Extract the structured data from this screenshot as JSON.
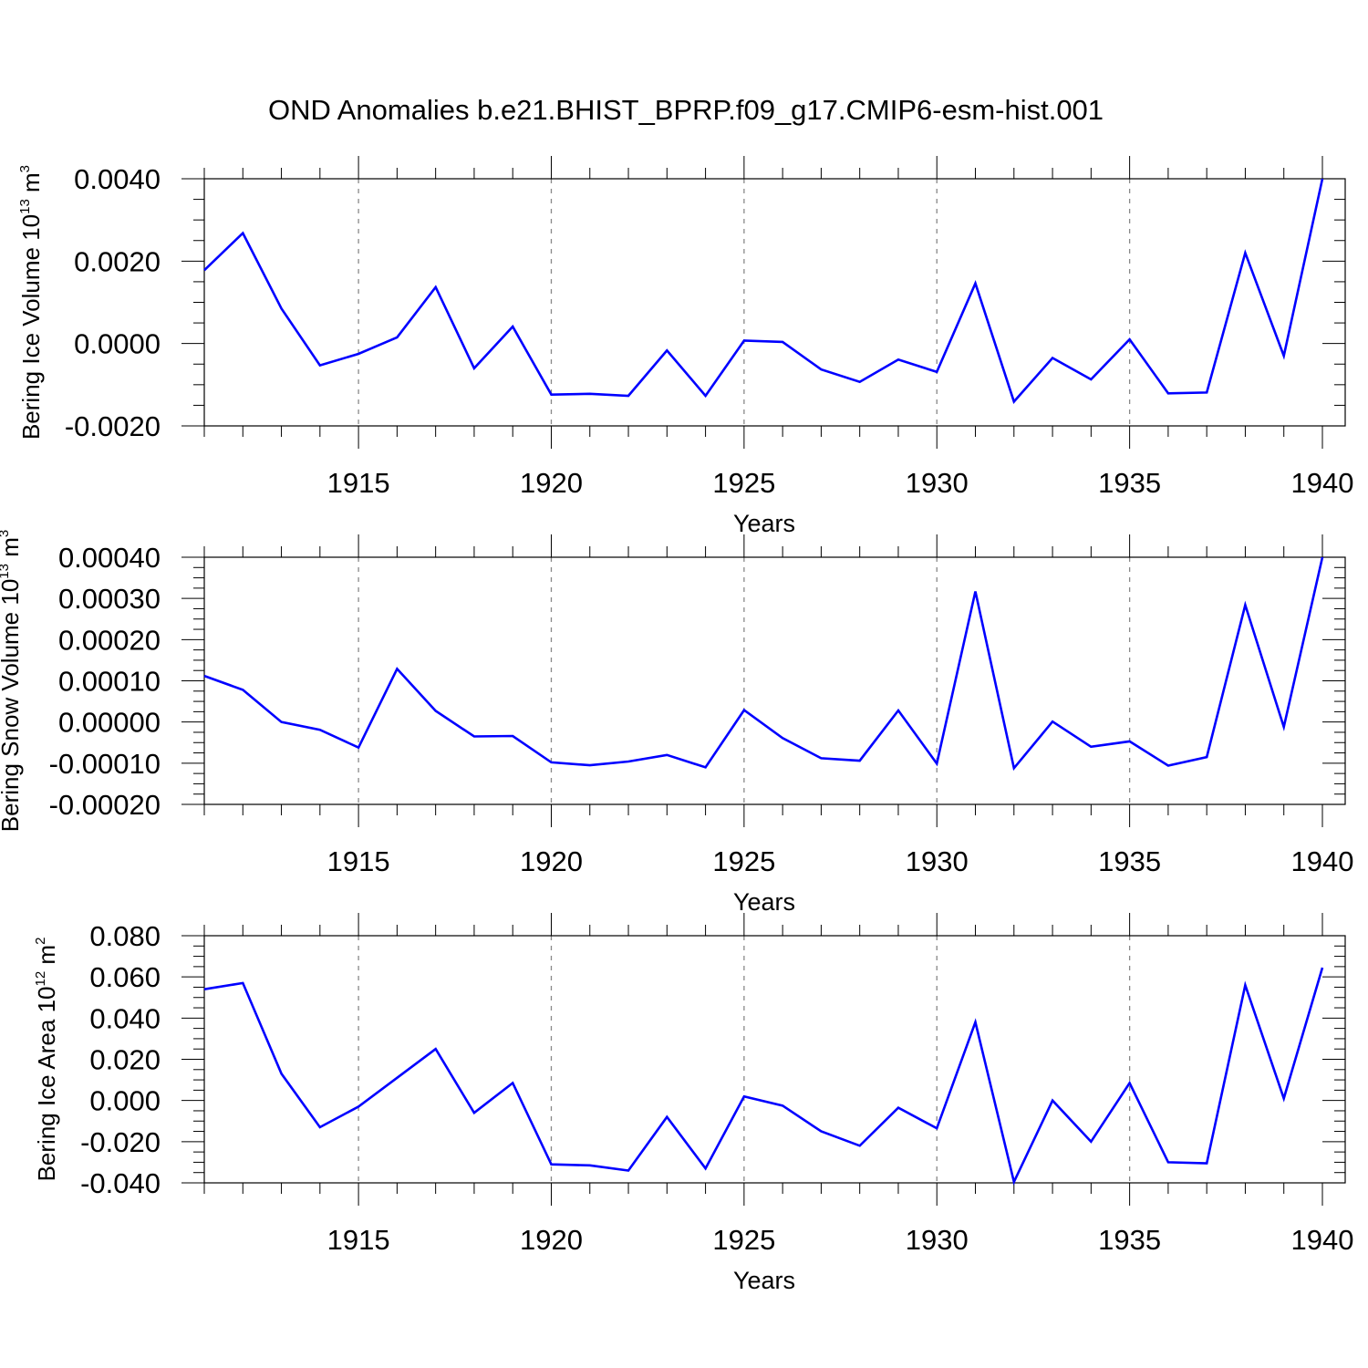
{
  "title": "OND Anomalies b.e21.BHIST_BPRP.f09_g17.CMIP6-esm-hist.001",
  "colors": {
    "line": "#0000ff",
    "grid": "#888888",
    "axis": "#000000"
  },
  "chart_data": [
    {
      "type": "line",
      "title": "OND Anomalies b.e21.BHIST_BPRP.f09_g17.CMIP6-esm-hist.001",
      "xlabel": "Years",
      "ylabel": {
        "text": "Bering Ice Volume 10",
        "sup": "13",
        "unit": " m",
        "unit_sup": "3"
      },
      "xlim": [
        1911,
        1940
      ],
      "ylim": [
        -0.002,
        0.004
      ],
      "xticks": [
        1915,
        1920,
        1925,
        1930,
        1935,
        1940
      ],
      "xtick_labels": [
        "1915",
        "1920",
        "1925",
        "1930",
        "1935",
        "1940"
      ],
      "yticks": [
        -0.002,
        0.0,
        0.002,
        0.004
      ],
      "ytick_labels": [
        "-0.0020",
        "0.0000",
        "0.0020",
        "0.0040"
      ],
      "grid": "vertical dashed at major x ticks",
      "x": [
        1911,
        1912,
        1913,
        1914,
        1915,
        1916,
        1917,
        1918,
        1919,
        1920,
        1921,
        1922,
        1923,
        1924,
        1925,
        1926,
        1927,
        1928,
        1929,
        1930,
        1931,
        1932,
        1933,
        1934,
        1935,
        1936,
        1937,
        1938,
        1939,
        1940
      ],
      "series": [
        {
          "name": "Bering Ice Volume",
          "values": [
            0.00178,
            0.00268,
            0.00085,
            -0.00053,
            -0.00025,
            0.00015,
            0.00137,
            -0.0006,
            0.00041,
            -0.00124,
            -0.00122,
            -0.00127,
            -0.00017,
            -0.00127,
            7e-05,
            4e-05,
            -0.00063,
            -0.00093,
            -0.00039,
            -0.00069,
            0.00146,
            -0.00141,
            -0.00035,
            -0.00087,
            0.0001,
            -0.00121,
            -0.00119,
            0.0022,
            -0.0003,
            0.004
          ]
        }
      ]
    },
    {
      "type": "line",
      "xlabel": "Years",
      "ylabel": {
        "text": "Bering Snow Volume 10",
        "sup": "13",
        "unit": " m",
        "unit_sup": "3"
      },
      "xlim": [
        1911,
        1940
      ],
      "ylim": [
        -0.0002,
        0.0004
      ],
      "xticks": [
        1915,
        1920,
        1925,
        1930,
        1935,
        1940
      ],
      "xtick_labels": [
        "1915",
        "1920",
        "1925",
        "1930",
        "1935",
        "1940"
      ],
      "yticks": [
        -0.0002,
        -0.0001,
        0.0,
        0.0001,
        0.0002,
        0.0003,
        0.0004
      ],
      "ytick_labels": [
        "-0.00020",
        "-0.00010",
        "0.00000",
        "0.00010",
        "0.00020",
        "0.00030",
        "0.00040"
      ],
      "grid": "vertical dashed at major x ticks",
      "x": [
        1911,
        1912,
        1913,
        1914,
        1915,
        1916,
        1917,
        1918,
        1919,
        1920,
        1921,
        1922,
        1923,
        1924,
        1925,
        1926,
        1927,
        1928,
        1929,
        1930,
        1931,
        1932,
        1933,
        1934,
        1935,
        1936,
        1937,
        1938,
        1939,
        1940
      ],
      "series": [
        {
          "name": "Bering Snow Volume",
          "values": [
            0.000112,
            7.8e-05,
            0.0,
            -1.9e-05,
            -6.2e-05,
            0.000129,
            2.7e-05,
            -3.5e-05,
            -3.4e-05,
            -9.8e-05,
            -0.000105,
            -9.6e-05,
            -8e-05,
            -0.00011,
            2.9e-05,
            -3.9e-05,
            -8.8e-05,
            -9.4e-05,
            2.8e-05,
            -0.000101,
            0.000317,
            -0.000112,
            1e-06,
            -6e-05,
            -4.7e-05,
            -0.000106,
            -8.5e-05,
            0.000284,
            -1.2e-05,
            0.0004
          ]
        }
      ]
    },
    {
      "type": "line",
      "xlabel": "Years",
      "ylabel": {
        "text": "Bering Ice Area 10",
        "sup": "12",
        "unit": " m",
        "unit_sup": "2"
      },
      "xlim": [
        1911,
        1940
      ],
      "ylim": [
        -0.04,
        0.08
      ],
      "xticks": [
        1915,
        1920,
        1925,
        1930,
        1935,
        1940
      ],
      "xtick_labels": [
        "1915",
        "1920",
        "1925",
        "1930",
        "1935",
        "1940"
      ],
      "yticks": [
        -0.04,
        -0.02,
        0.0,
        0.02,
        0.04,
        0.06,
        0.08
      ],
      "ytick_labels": [
        "-0.040",
        "-0.020",
        "0.000",
        "0.020",
        "0.040",
        "0.060",
        "0.080"
      ],
      "grid": "vertical dashed at major x ticks",
      "x": [
        1911,
        1912,
        1913,
        1914,
        1915,
        1916,
        1917,
        1918,
        1919,
        1920,
        1921,
        1922,
        1923,
        1924,
        1925,
        1926,
        1927,
        1928,
        1929,
        1930,
        1931,
        1932,
        1933,
        1934,
        1935,
        1936,
        1937,
        1938,
        1939,
        1940
      ],
      "series": [
        {
          "name": "Bering Ice Area",
          "values": [
            0.054,
            0.057,
            0.013,
            -0.013,
            -0.003,
            0.011,
            0.025,
            -0.006,
            0.0085,
            -0.031,
            -0.0315,
            -0.034,
            -0.008,
            -0.033,
            0.002,
            -0.0025,
            -0.015,
            -0.022,
            -0.0035,
            -0.0135,
            0.038,
            -0.0395,
            0.0,
            -0.02,
            0.0085,
            -0.03,
            -0.0305,
            0.056,
            0.001,
            0.0645
          ]
        }
      ]
    }
  ]
}
